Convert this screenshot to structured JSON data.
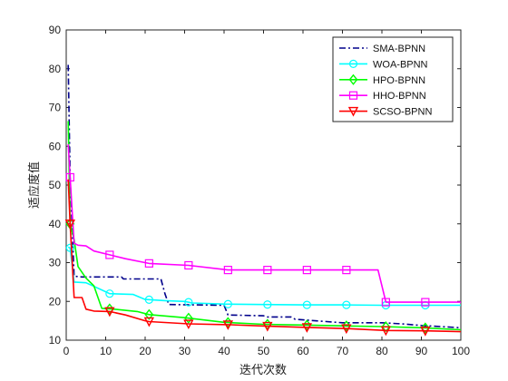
{
  "chart_data": {
    "type": "line",
    "title": "",
    "xlabel": "迭代次数",
    "ylabel": "适应度值",
    "xlim": [
      0,
      100
    ],
    "ylim": [
      10,
      90
    ],
    "xticks": [
      0,
      10,
      20,
      30,
      40,
      50,
      60,
      70,
      80,
      90,
      100
    ],
    "yticks": [
      10,
      20,
      30,
      40,
      50,
      60,
      70,
      80,
      90
    ],
    "grid": false,
    "legend_position": "top-right",
    "series": [
      {
        "name": "SMA-BPNN",
        "color": "#00008b",
        "dash": "dash-dot",
        "marker": "none",
        "points": [
          [
            0.5,
            81
          ],
          [
            1,
            52
          ],
          [
            2,
            26.5
          ],
          [
            4,
            26.3
          ],
          [
            14,
            26.3
          ],
          [
            14.5,
            25.8
          ],
          [
            24,
            25.8
          ],
          [
            25,
            22
          ],
          [
            26,
            19.2
          ],
          [
            40,
            19
          ],
          [
            41,
            16.5
          ],
          [
            50,
            16.3
          ],
          [
            51,
            16
          ],
          [
            57,
            16
          ],
          [
            58,
            15.4
          ],
          [
            70,
            14.5
          ],
          [
            80,
            14.5
          ],
          [
            85,
            14.2
          ],
          [
            90,
            13.8
          ],
          [
            100,
            13.2
          ]
        ]
      },
      {
        "name": "WOA-BPNN",
        "color": "#00ffff",
        "dash": "solid",
        "marker": "circle",
        "points": [
          [
            0.5,
            34
          ],
          [
            1,
            33.8
          ],
          [
            2,
            25
          ],
          [
            5,
            24.8
          ],
          [
            10,
            22.5
          ],
          [
            11,
            22
          ],
          [
            17,
            21.8
          ],
          [
            20,
            20.5
          ],
          [
            25,
            20.2
          ],
          [
            30,
            20
          ],
          [
            32,
            19.6
          ],
          [
            40,
            19.3
          ],
          [
            50,
            19.2
          ],
          [
            60,
            19.1
          ],
          [
            70,
            19.1
          ],
          [
            80,
            19
          ],
          [
            90,
            19
          ],
          [
            100,
            19
          ]
        ]
      },
      {
        "name": "HPO-BPNN",
        "color": "#00ff00",
        "dash": "solid",
        "marker": "diamond",
        "points": [
          [
            0.5,
            66.5
          ],
          [
            1,
            40
          ],
          [
            2,
            36
          ],
          [
            3,
            29
          ],
          [
            5,
            26
          ],
          [
            7,
            24
          ],
          [
            9,
            18.2
          ],
          [
            12,
            18
          ],
          [
            18,
            17.4
          ],
          [
            21,
            16.6
          ],
          [
            30,
            15.8
          ],
          [
            40,
            14.6
          ],
          [
            50,
            14.1
          ],
          [
            60,
            13.9
          ],
          [
            70,
            13.7
          ],
          [
            80,
            13.5
          ],
          [
            90,
            13.2
          ],
          [
            100,
            12.7
          ]
        ]
      },
      {
        "name": "HHO-BPNN",
        "color": "#ff00ff",
        "dash": "solid",
        "marker": "square",
        "points": [
          [
            0.5,
            60.5
          ],
          [
            1,
            52
          ],
          [
            2,
            35
          ],
          [
            3,
            34.5
          ],
          [
            5,
            34.3
          ],
          [
            7,
            33
          ],
          [
            11,
            32
          ],
          [
            15,
            31
          ],
          [
            21,
            29.8
          ],
          [
            31,
            29.3
          ],
          [
            41,
            28.1
          ],
          [
            51,
            28.1
          ],
          [
            61,
            28.1
          ],
          [
            71,
            28.1
          ],
          [
            79,
            28.1
          ],
          [
            81,
            19.8
          ],
          [
            91,
            19.8
          ],
          [
            100,
            19.8
          ]
        ]
      },
      {
        "name": "SCSO-BPNN",
        "color": "#ff0000",
        "dash": "solid",
        "marker": "triangle-down",
        "points": [
          [
            0.5,
            51.5
          ],
          [
            1,
            40
          ],
          [
            2,
            21
          ],
          [
            4,
            21
          ],
          [
            5,
            18
          ],
          [
            7,
            17.5
          ],
          [
            11,
            17.4
          ],
          [
            15,
            16.5
          ],
          [
            20,
            15
          ],
          [
            21,
            14.8
          ],
          [
            31,
            14.2
          ],
          [
            41,
            14
          ],
          [
            51,
            13.6
          ],
          [
            61,
            13.3
          ],
          [
            71,
            13
          ],
          [
            81,
            12.5
          ],
          [
            91,
            12.4
          ],
          [
            100,
            12.2
          ]
        ]
      }
    ],
    "marker_x": [
      1,
      11,
      21,
      31,
      41,
      51,
      61,
      71,
      81,
      91
    ]
  }
}
